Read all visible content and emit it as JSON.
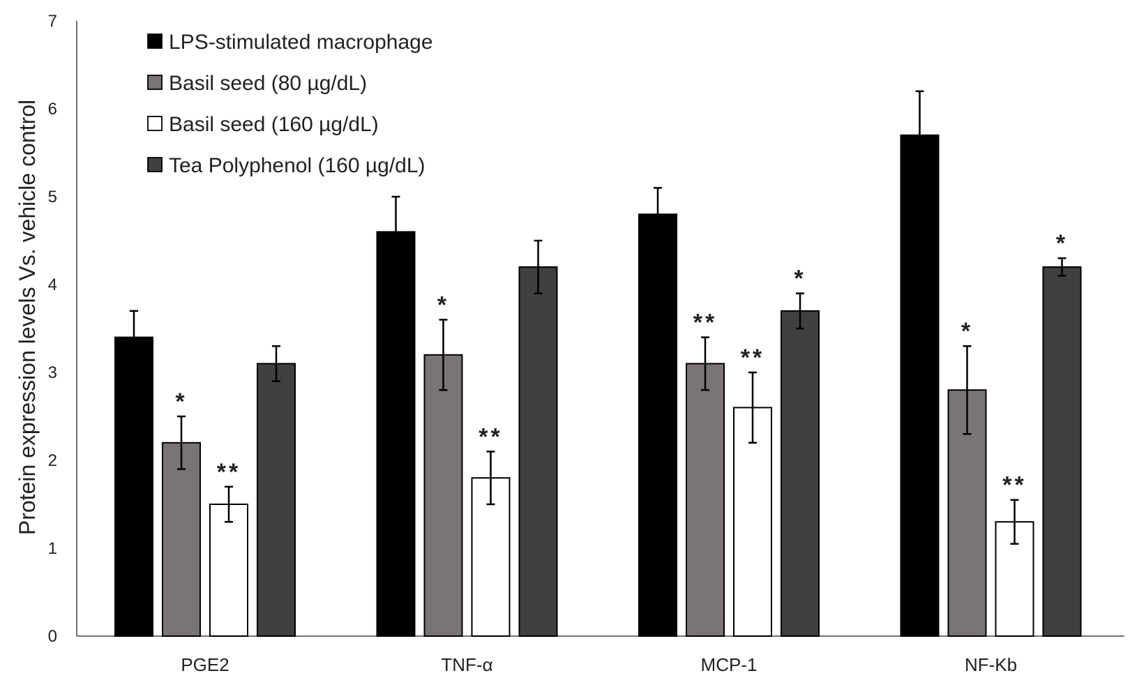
{
  "chart_data": {
    "type": "bar",
    "title": "",
    "xlabel": "",
    "ylabel": "Protein expression levels Vs. vehicle control",
    "ylim": [
      0,
      7
    ],
    "yticks": [
      0,
      1,
      2,
      3,
      4,
      5,
      6,
      7
    ],
    "grid": false,
    "legend_position": "top-left",
    "categories": [
      "PGE2",
      "TNF-α",
      "MCP-1",
      "NF-Kb"
    ],
    "series": [
      {
        "name": "LPS-stimulated macrophage",
        "color": "#000000",
        "values": [
          3.4,
          4.6,
          4.8,
          5.7
        ],
        "errors": [
          0.3,
          0.4,
          0.3,
          0.5
        ],
        "significance": [
          "",
          "",
          "",
          ""
        ]
      },
      {
        "name": "Basil seed (80 µg/dL)",
        "color": "#7a7474",
        "values": [
          2.2,
          3.2,
          3.1,
          2.8
        ],
        "errors": [
          0.3,
          0.4,
          0.3,
          0.5
        ],
        "significance": [
          "*",
          "*",
          "**",
          "*"
        ]
      },
      {
        "name": "Basil seed (160 µg/dL)",
        "color": "#ffffff",
        "values": [
          1.5,
          1.8,
          2.6,
          1.3
        ],
        "errors": [
          0.2,
          0.3,
          0.4,
          0.25
        ],
        "significance": [
          "**",
          "**",
          "**",
          "**"
        ]
      },
      {
        "name": "Tea Polyphenol (160 µg/dL)",
        "color": "#404040",
        "values": [
          3.1,
          4.2,
          3.7,
          4.2
        ],
        "errors": [
          0.2,
          0.3,
          0.2,
          0.1
        ],
        "significance": [
          "",
          "",
          "*",
          "*"
        ]
      }
    ]
  }
}
